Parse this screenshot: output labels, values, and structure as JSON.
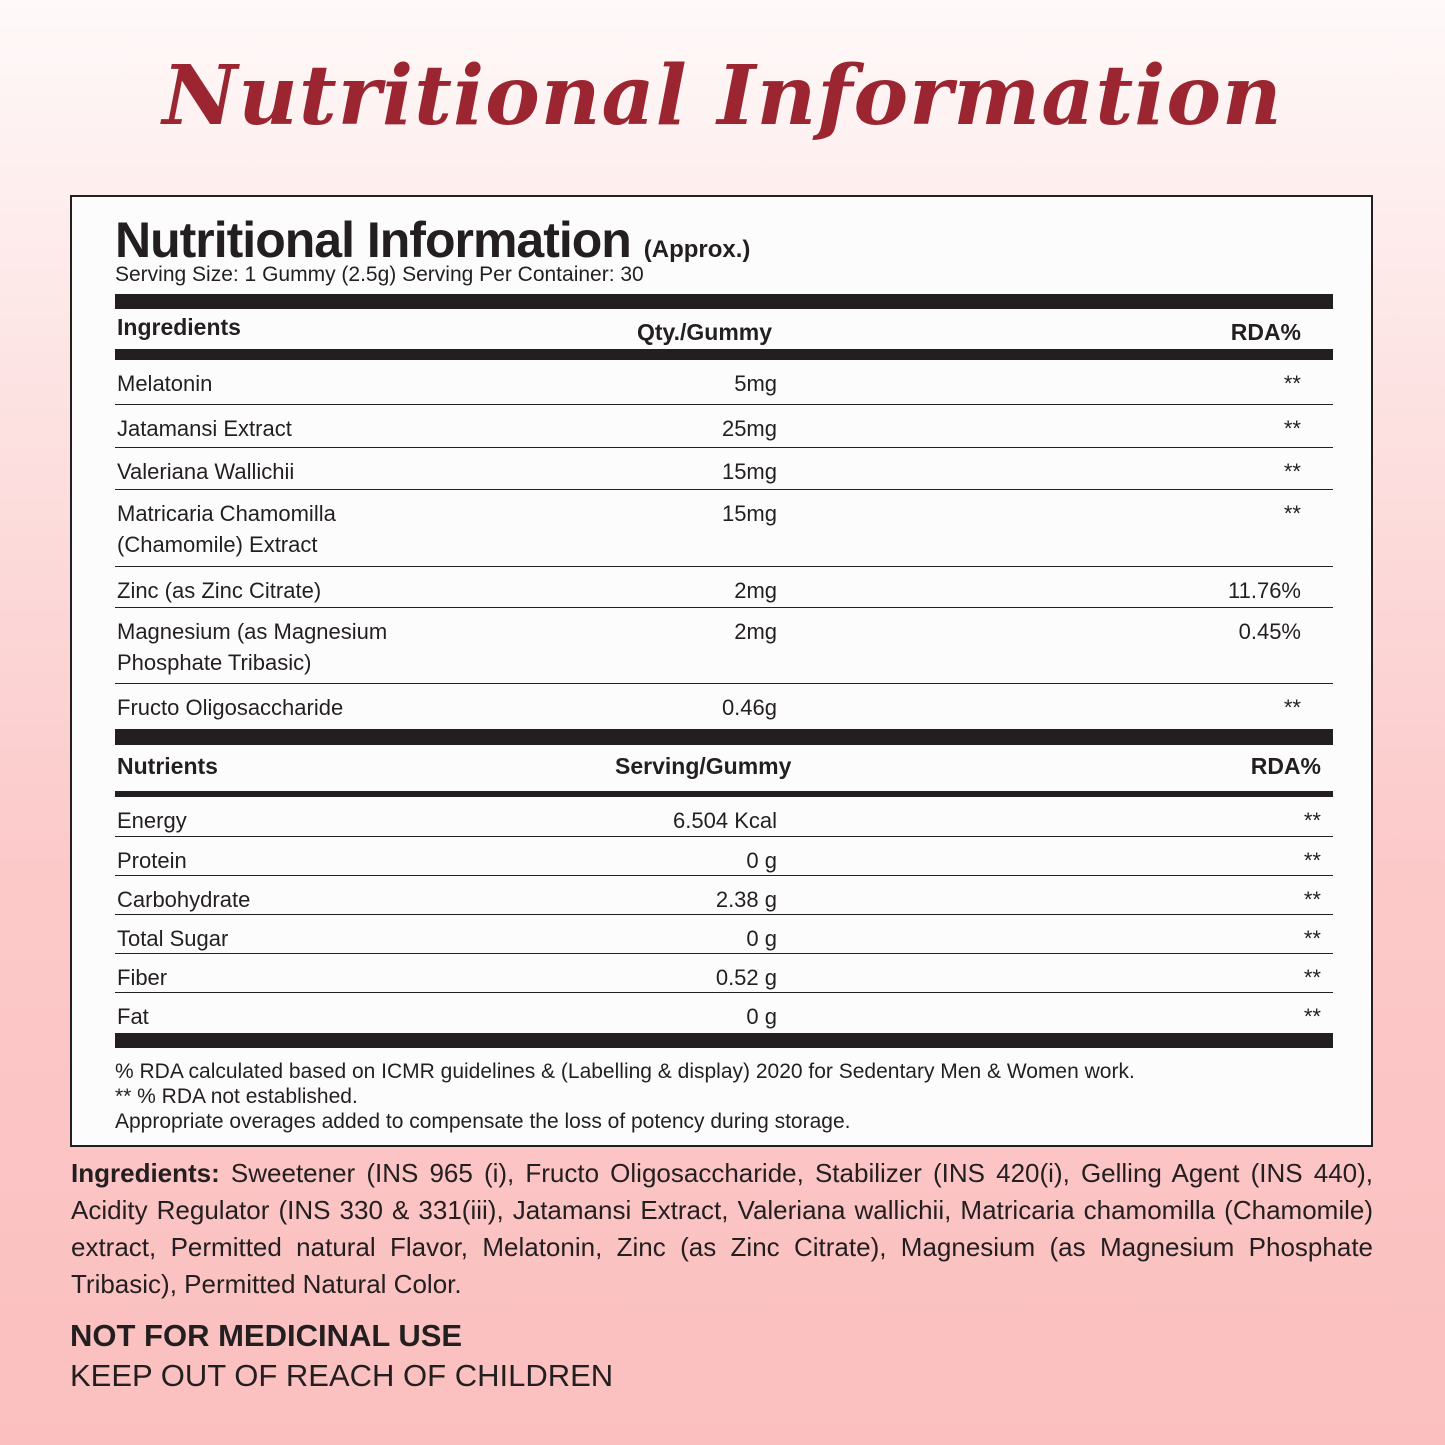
{
  "banner_title": "Nutritional Information",
  "panel": {
    "title": "Nutritional Information",
    "approx": "(Approx.)",
    "serving": "Serving Size: 1 Gummy (2.5g) Serving Per Container: 30",
    "ingredients_table": {
      "headers": [
        "Ingredients",
        "Qty./Gummy",
        "RDA%"
      ],
      "rows": [
        {
          "name": "Melatonin",
          "qty": "5mg",
          "rda": "**"
        },
        {
          "name": "Jatamansi Extract",
          "qty": "25mg",
          "rda": "**"
        },
        {
          "name": "Valeriana Wallichii",
          "qty": "15mg",
          "rda": "**"
        },
        {
          "name": "Matricaria Chamomilla\n(Chamomile) Extract",
          "qty": "15mg",
          "rda": "**"
        },
        {
          "name": "Zinc (as Zinc Citrate)",
          "qty": "2mg",
          "rda": "11.76%"
        },
        {
          "name": "Magnesium (as Magnesium\nPhosphate Tribasic)",
          "qty": "2mg",
          "rda": "0.45%"
        },
        {
          "name": "Fructo Oligosaccharide",
          "qty": "0.46g",
          "rda": "**"
        }
      ]
    },
    "nutrients_table": {
      "headers": [
        "Nutrients",
        "Serving/Gummy",
        "RDA%"
      ],
      "rows": [
        {
          "name": "Energy",
          "qty": "6.504 Kcal",
          "rda": "**"
        },
        {
          "name": "Protein",
          "qty": "0 g",
          "rda": "**"
        },
        {
          "name": "Carbohydrate",
          "qty": "2.38 g",
          "rda": "**"
        },
        {
          "name": "Total Sugar",
          "qty": "0 g",
          "rda": "**"
        },
        {
          "name": "Fiber",
          "qty": "0.52 g",
          "rda": "**"
        },
        {
          "name": "Fat",
          "qty": "0 g",
          "rda": "**"
        }
      ]
    },
    "footnotes": [
      "% RDA calculated based on ICMR guidelines & (Labelling & display) 2020 for Sedentary Men & Women work.",
      "** % RDA not established.",
      "Appropriate overages added to compensate the loss of potency during storage."
    ]
  },
  "ingredients_list": {
    "label": "Ingredients:",
    "text": " Sweetener (INS 965 (i), Fructo Oligosaccharide, Stabilizer (INS 420(i), Gelling Agent (INS 440), Acidity Regulator (INS 330 & 331(iii), Jatamansi Extract, Valeriana wallichii, Matricaria chamomilla (Chamomile) extract, Permitted natural Flavor, Melatonin, Zinc (as Zinc Citrate), Magnesium (as Magnesium Phosphate Tribasic), Permitted Natural Color."
  },
  "warnings": [
    "NOT FOR MEDICINAL USE",
    "KEEP OUT OF REACH OF CHILDREN"
  ],
  "colors": {
    "title": "#9b2631",
    "ink": "#231f20",
    "background_bottom": "#fbbfbf"
  }
}
